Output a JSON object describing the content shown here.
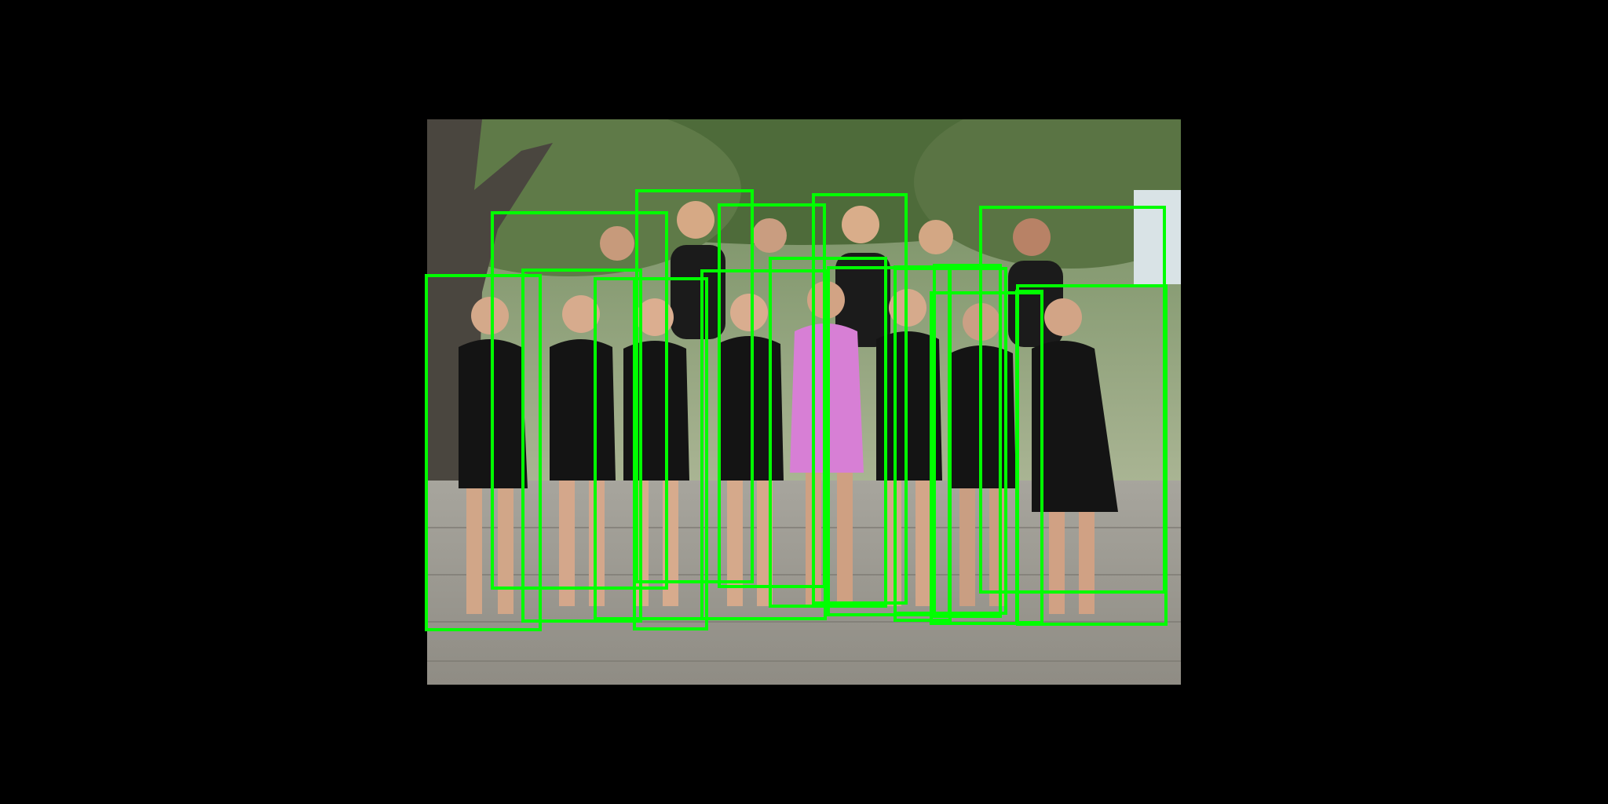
{
  "scene": {
    "description_free": true,
    "background_color": "#000000",
    "box_color": "#00ff00",
    "detections_count": 18,
    "detections": [
      {
        "label": "person"
      },
      {
        "label": "person"
      },
      {
        "label": "person"
      },
      {
        "label": "person"
      },
      {
        "label": "person"
      },
      {
        "label": "person"
      },
      {
        "label": "person"
      },
      {
        "label": "person"
      },
      {
        "label": "person"
      },
      {
        "label": "person"
      },
      {
        "label": "person"
      },
      {
        "label": "person"
      },
      {
        "label": "person"
      },
      {
        "label": "person"
      },
      {
        "label": "person"
      },
      {
        "label": "person"
      },
      {
        "label": "person"
      },
      {
        "label": "person"
      }
    ]
  }
}
